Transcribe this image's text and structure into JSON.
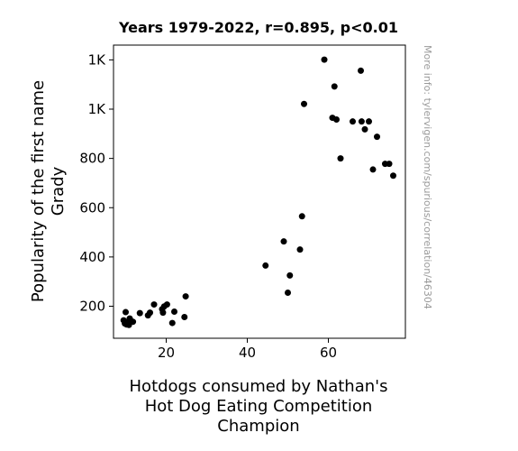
{
  "chart_data": {
    "type": "scatter",
    "title": "Years 1979-2022, r=0.895, p<0.01",
    "xlabel_lines": [
      "Hotdogs consumed by Nathan's",
      "Hot Dog Eating Competition",
      "Champion"
    ],
    "ylabel_lines": [
      "Popularity of the first name",
      "Grady"
    ],
    "side_note": "More info: tylervigen.com/spurious/correlation/46304",
    "xlim": [
      7,
      79
    ],
    "ylim": [
      70,
      1260
    ],
    "x_ticks": [
      {
        "value": 20,
        "label": "20"
      },
      {
        "value": 40,
        "label": "40"
      },
      {
        "value": 60,
        "label": "60"
      }
    ],
    "y_ticks": [
      {
        "value": 200,
        "label": "200"
      },
      {
        "value": 400,
        "label": "400"
      },
      {
        "value": 600,
        "label": "600"
      },
      {
        "value": 800,
        "label": "800"
      },
      {
        "value": 1000,
        "label": "1K"
      },
      {
        "value": 1200,
        "label": "1K"
      }
    ],
    "grid": false,
    "marker_color": "#000000",
    "points": [
      {
        "x": 9.5,
        "y": 143
      },
      {
        "x": 9.8,
        "y": 130
      },
      {
        "x": 10.0,
        "y": 176
      },
      {
        "x": 10.2,
        "y": 126
      },
      {
        "x": 10.5,
        "y": 136
      },
      {
        "x": 10.8,
        "y": 124
      },
      {
        "x": 11.0,
        "y": 150
      },
      {
        "x": 11.2,
        "y": 142
      },
      {
        "x": 11.8,
        "y": 137
      },
      {
        "x": 13.5,
        "y": 172
      },
      {
        "x": 15.5,
        "y": 163
      },
      {
        "x": 16.0,
        "y": 174
      },
      {
        "x": 17.0,
        "y": 207
      },
      {
        "x": 19.0,
        "y": 188
      },
      {
        "x": 19.2,
        "y": 174
      },
      {
        "x": 19.5,
        "y": 199
      },
      {
        "x": 20.2,
        "y": 207
      },
      {
        "x": 21.5,
        "y": 132
      },
      {
        "x": 22.0,
        "y": 178
      },
      {
        "x": 24.5,
        "y": 156
      },
      {
        "x": 24.8,
        "y": 240
      },
      {
        "x": 44.5,
        "y": 365
      },
      {
        "x": 49.0,
        "y": 463
      },
      {
        "x": 50.0,
        "y": 255
      },
      {
        "x": 50.5,
        "y": 325
      },
      {
        "x": 53.0,
        "y": 430
      },
      {
        "x": 53.5,
        "y": 565
      },
      {
        "x": 54.0,
        "y": 1021
      },
      {
        "x": 59.0,
        "y": 1201
      },
      {
        "x": 61.0,
        "y": 965
      },
      {
        "x": 61.5,
        "y": 1092
      },
      {
        "x": 62.0,
        "y": 958
      },
      {
        "x": 63.0,
        "y": 800
      },
      {
        "x": 66.0,
        "y": 950
      },
      {
        "x": 68.0,
        "y": 1156
      },
      {
        "x": 68.2,
        "y": 950
      },
      {
        "x": 69.0,
        "y": 918
      },
      {
        "x": 70.0,
        "y": 950
      },
      {
        "x": 71.0,
        "y": 755
      },
      {
        "x": 72.0,
        "y": 888
      },
      {
        "x": 74.0,
        "y": 778
      },
      {
        "x": 75.0,
        "y": 778
      },
      {
        "x": 76.0,
        "y": 730
      }
    ]
  }
}
